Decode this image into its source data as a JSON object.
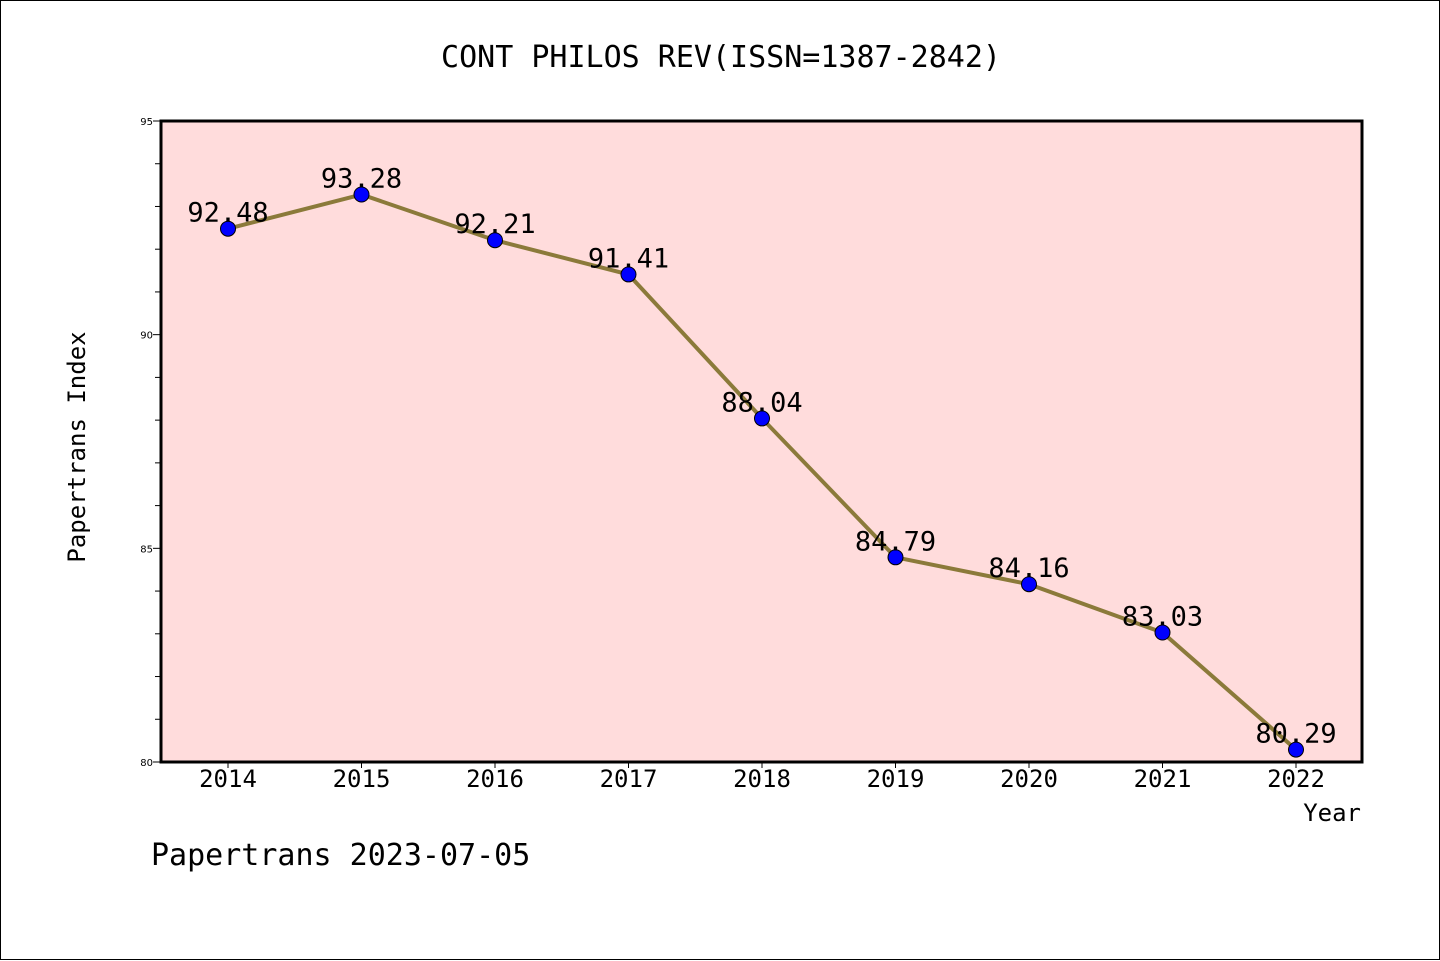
{
  "chart_data": {
    "type": "line",
    "title": "CONT PHILOS REV(ISSN=1387-2842)",
    "xlabel": "Year",
    "ylabel": "Papertrans Index",
    "footer": "Papertrans 2023-07-05",
    "categories": [
      "2014",
      "2015",
      "2016",
      "2017",
      "2018",
      "2019",
      "2020",
      "2021",
      "2022"
    ],
    "series": [
      {
        "values": [
          92.48,
          93.28,
          92.21,
          91.41,
          88.04,
          84.79,
          84.16,
          83.03,
          80.29
        ],
        "labels": [
          "92.48",
          "93.28",
          "92.21",
          "91.41",
          "88.04",
          "84.79",
          "84.16",
          "83.03",
          "80.29"
        ],
        "line_color": "#8b7a3a",
        "marker_color": "#0000ff"
      }
    ],
    "ylim": [
      80,
      95
    ],
    "yticks": [
      "80",
      "85",
      "90",
      "95"
    ],
    "plot_background": "#ffdcdc",
    "grid": false
  }
}
